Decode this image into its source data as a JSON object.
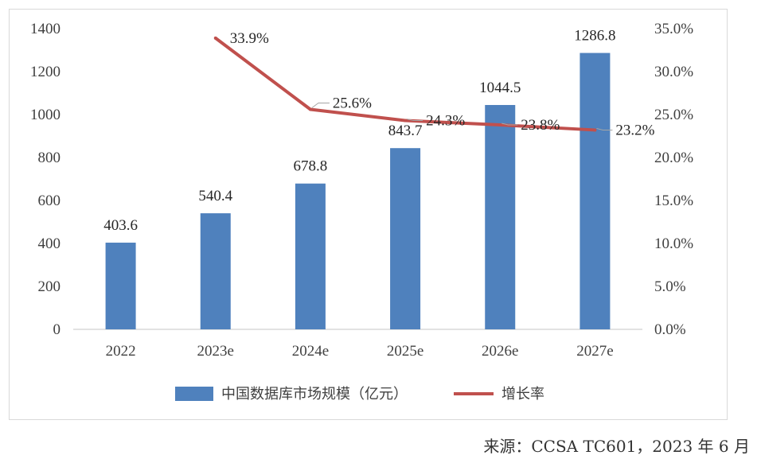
{
  "chart_data": {
    "type": "bar",
    "categories": [
      "2022",
      "2023e",
      "2024e",
      "2025e",
      "2026e",
      "2027e"
    ],
    "series": [
      {
        "name": "中国数据库市场规模（亿元）",
        "type": "bar",
        "axis": "left",
        "color": "#4f81bd",
        "values": [
          403.6,
          540.4,
          678.8,
          843.7,
          1044.5,
          1286.8
        ],
        "labels": [
          "403.6",
          "540.4",
          "678.8",
          "843.7",
          "1044.5",
          "1286.8"
        ]
      },
      {
        "name": "增长率",
        "type": "line",
        "axis": "right",
        "color": "#c0504d",
        "values": [
          null,
          33.9,
          25.6,
          24.3,
          23.8,
          23.2
        ],
        "labels": [
          "",
          "33.9%",
          "25.6%",
          "24.3%",
          "23.8%",
          "23.2%"
        ]
      }
    ],
    "y_left": {
      "min": 0,
      "max": 1400,
      "ticks": [
        "0",
        "200",
        "400",
        "600",
        "800",
        "1000",
        "1200",
        "1400"
      ]
    },
    "y_right": {
      "min": 0,
      "max": 35,
      "ticks": [
        "0.0%",
        "5.0%",
        "10.0%",
        "15.0%",
        "20.0%",
        "25.0%",
        "30.0%",
        "35.0%"
      ]
    },
    "legend_position": "bottom",
    "grid": false
  },
  "source_note": "来源：CCSA TC601，2023 年 6 月"
}
